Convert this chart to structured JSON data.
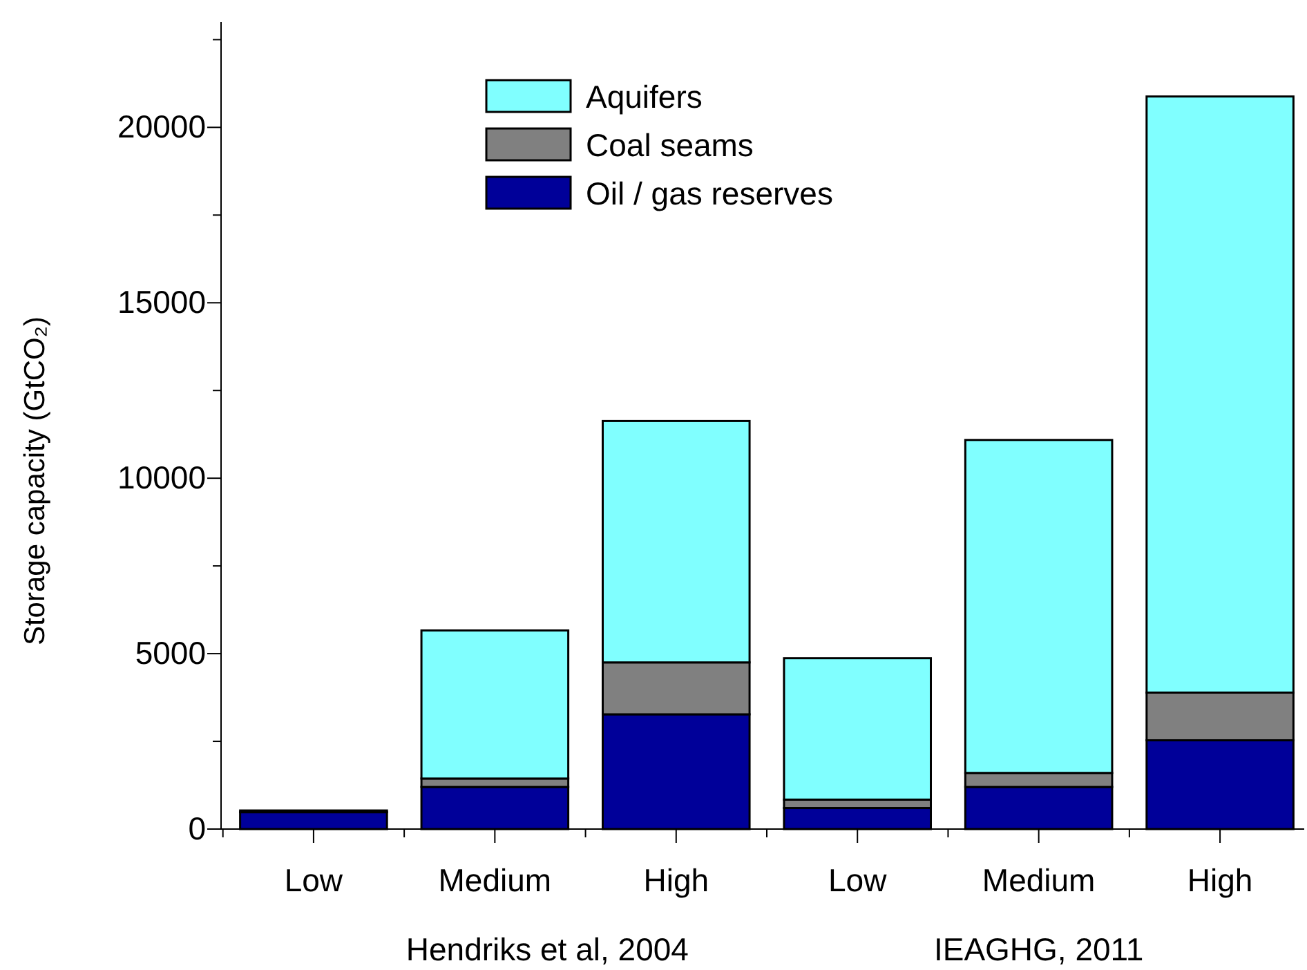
{
  "chart_data": {
    "type": "bar",
    "stacked": true,
    "ylabel": "Storage capacity (GtCO₂)",
    "categories": [
      "Low",
      "Medium",
      "High",
      "Low",
      "Medium",
      "High"
    ],
    "series": [
      {
        "name": "Oil / gas reserves",
        "color": "#000099",
        "values": [
          480,
          1200,
          3270,
          600,
          1200,
          2530
        ]
      },
      {
        "name": "Coal seams",
        "color": "#808080",
        "values": [
          50,
          240,
          1480,
          240,
          400,
          1360
        ]
      },
      {
        "name": "Aquifers",
        "color": "#80ffff",
        "values": [
          0,
          4220,
          6880,
          4030,
          9490,
          16990
        ]
      }
    ],
    "ylim": [
      0,
      23000
    ],
    "yticks": [
      0,
      {
        "value": 2500,
        "label": null
      },
      5000,
      {
        "value": 7500,
        "label": null
      },
      10000,
      {
        "value": 12500,
        "label": null
      },
      15000,
      {
        "value": 17500,
        "label": null
      },
      20000,
      {
        "value": 22500,
        "label": null
      }
    ],
    "legend": "top",
    "annotations": [
      "Hendriks et al, 2004",
      "IEAGHG, 2011"
    ]
  }
}
